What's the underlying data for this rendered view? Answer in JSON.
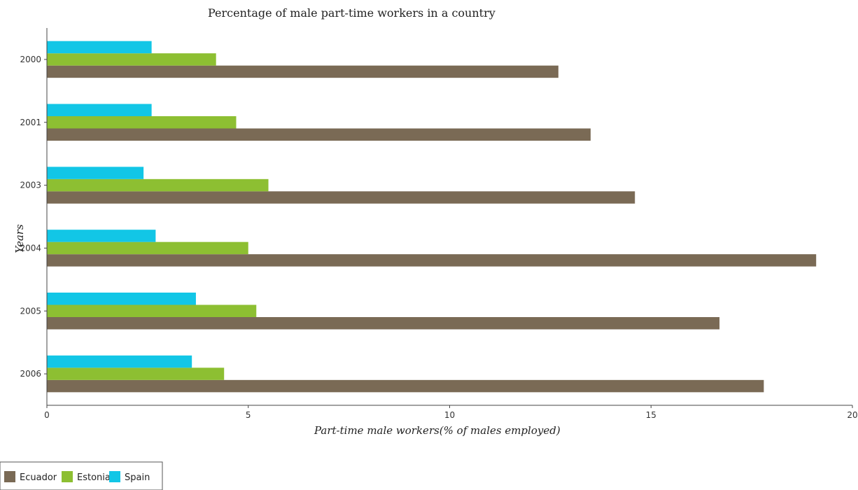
{
  "chart_data": {
    "type": "bar",
    "orientation": "horizontal",
    "title": "Percentage of male part-time workers in a country",
    "xlabel": "Part-time male workers(% of males employed)",
    "ylabel": "Years",
    "categories": [
      "2000",
      "2001",
      "2003",
      "2004",
      "2005",
      "2006"
    ],
    "xlim": [
      0,
      20
    ],
    "xticks": [
      "0",
      "5",
      "10",
      "15",
      "20"
    ],
    "grid": false,
    "legend_position": "bottom-left",
    "series": [
      {
        "name": "Ecuador",
        "color": "#7a6a55",
        "values": [
          12.7,
          13.5,
          14.6,
          19.1,
          16.7,
          17.8
        ]
      },
      {
        "name": "Estonia",
        "color": "#8dbf32",
        "values": [
          4.2,
          4.7,
          5.5,
          5.0,
          5.2,
          4.4
        ]
      },
      {
        "name": "Spain",
        "color": "#12c6e6",
        "values": [
          2.6,
          2.6,
          2.4,
          2.7,
          3.7,
          3.6
        ]
      }
    ]
  }
}
